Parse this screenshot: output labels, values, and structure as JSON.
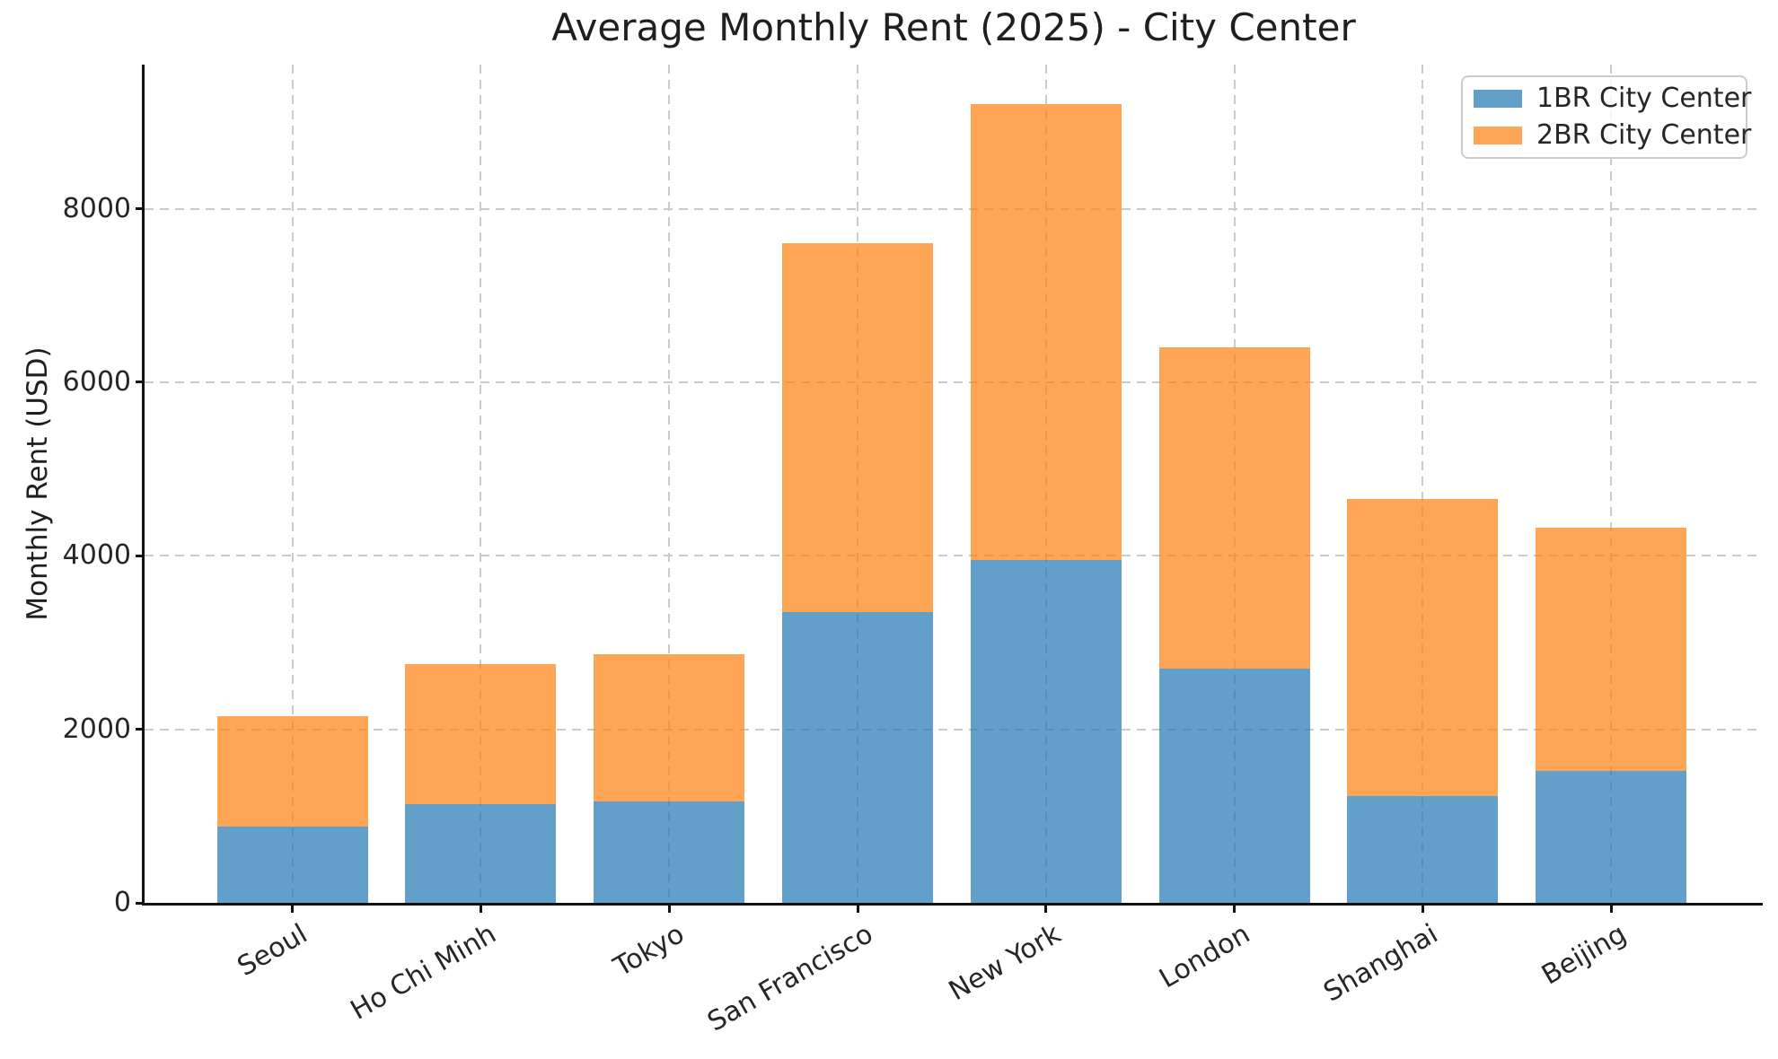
{
  "chart_data": {
    "type": "bar",
    "stacked": true,
    "title": "Average Monthly Rent (2025) - City Center",
    "xlabel": "",
    "ylabel": "Monthly Rent (USD)",
    "categories": [
      "Seoul",
      "Ho Chi Minh",
      "Tokyo",
      "San Francisco",
      "New York",
      "London",
      "Shanghai",
      "Beijing"
    ],
    "series": [
      {
        "name": "1BR City Center",
        "color": "#1f77b4",
        "alpha": 0.7,
        "values": [
          880,
          1140,
          1170,
          3350,
          3950,
          2700,
          1230,
          1520
        ]
      },
      {
        "name": "2BR City Center",
        "color": "#ff7f0e",
        "alpha": 0.7,
        "values": [
          1270,
          1610,
          1700,
          4250,
          5250,
          3700,
          3420,
          2800
        ]
      }
    ],
    "stack_totals": [
      2150,
      2750,
      2870,
      7600,
      9200,
      6400,
      4650,
      4320
    ],
    "yticks": [
      0,
      2000,
      4000,
      6000,
      8000
    ],
    "ylim": [
      0,
      9660
    ],
    "grid": "dashed, both axes",
    "grid_color": "#cbcbcb",
    "legend_position": "upper right",
    "spine_color": "#111111",
    "background_color": "#ffffff",
    "x_tick_rotation_deg": 30
  }
}
